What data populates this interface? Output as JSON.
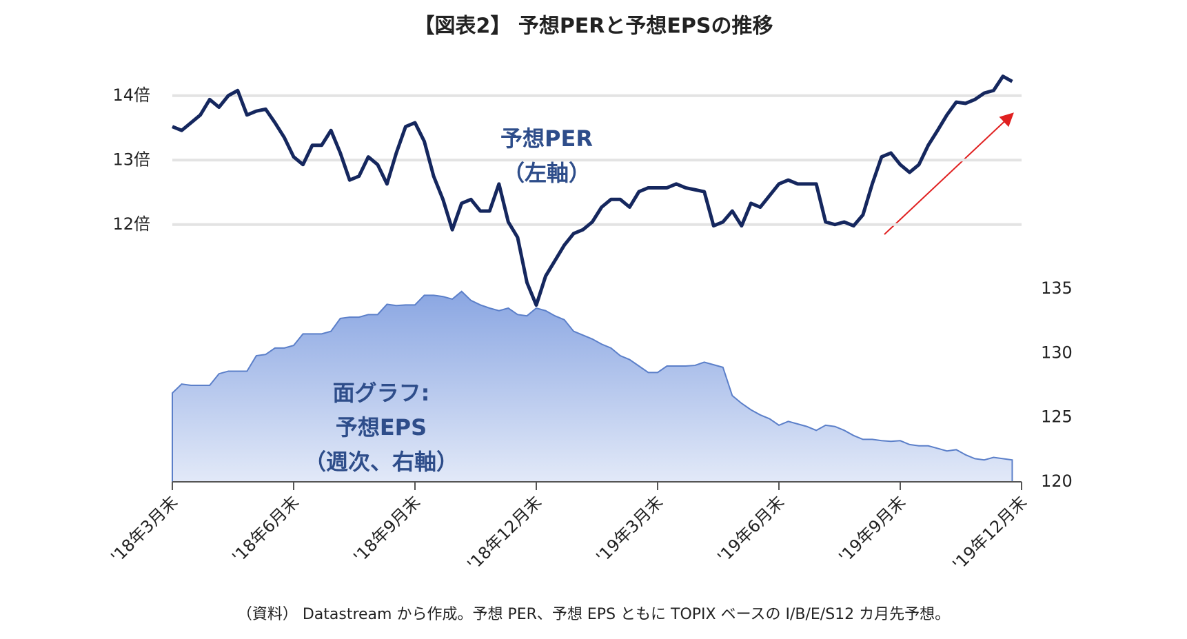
{
  "chart_data": {
    "type": "line-area",
    "title": "【図表2】 予想PERと予想EPSの推移",
    "note": "（資料） Datastream から作成。予想 PER、予想 EPS ともに TOPIX ベースの I/B/E/S12 カ月先予想。",
    "annotations": [
      "予想PER",
      "（左軸）",
      "面グラフ:",
      "予想EPS",
      "（週次、右軸）"
    ],
    "categories": [
      "'18年3月末",
      null,
      null,
      null,
      null,
      null,
      null,
      null,
      null,
      null,
      null,
      null,
      null,
      "'18年6月末",
      null,
      null,
      null,
      null,
      null,
      null,
      null,
      null,
      null,
      null,
      null,
      null,
      "'18年9月末",
      null,
      null,
      null,
      null,
      null,
      null,
      null,
      null,
      null,
      null,
      null,
      null,
      "'18年12月末",
      null,
      null,
      null,
      null,
      null,
      null,
      null,
      null,
      null,
      null,
      null,
      null,
      "'19年3月末",
      null,
      null,
      null,
      null,
      null,
      null,
      null,
      null,
      null,
      null,
      null,
      null,
      "'19年6月末",
      null,
      null,
      null,
      null,
      null,
      null,
      null,
      null,
      null,
      null,
      null,
      null,
      "'19年9月末",
      null,
      null,
      null,
      null,
      null,
      null,
      null,
      null,
      null,
      null,
      null,
      null,
      "'19年12月末"
    ],
    "series": [
      {
        "name": "予想PER",
        "color": "#15275e",
        "axis": "y",
        "values": [
          13.52,
          13.46,
          13.58,
          13.7,
          13.94,
          13.82,
          14.0,
          14.08,
          13.7,
          13.76,
          13.79,
          13.58,
          13.35,
          13.05,
          12.93,
          13.23,
          13.23,
          13.46,
          13.11,
          12.69,
          12.75,
          13.05,
          12.93,
          12.63,
          13.11,
          13.52,
          13.58,
          13.29,
          12.75,
          12.39,
          11.92,
          12.33,
          12.39,
          12.21,
          12.21,
          12.63,
          12.04,
          11.8,
          11.1,
          10.75,
          11.2,
          11.44,
          11.68,
          11.86,
          11.92,
          12.04,
          12.27,
          12.39,
          12.39,
          12.27,
          12.51,
          12.57,
          12.57,
          12.57,
          12.63,
          12.57,
          12.54,
          12.51,
          11.98,
          12.04,
          12.21,
          11.98,
          12.33,
          12.27,
          12.45,
          12.63,
          12.69,
          12.63,
          12.63,
          12.63,
          12.04,
          12.0,
          12.04,
          11.98,
          12.15,
          12.63,
          13.05,
          13.11,
          12.93,
          12.81,
          12.93,
          13.23,
          13.46,
          13.7,
          13.9,
          13.88,
          13.94,
          14.04,
          14.08,
          14.3,
          14.22,
          null
        ]
      },
      {
        "name": "予想EPS",
        "color": "#5b7fc9",
        "axis": "y2",
        "values": [
          126.9,
          127.6,
          127.5,
          127.5,
          127.5,
          128.4,
          128.6,
          128.6,
          128.6,
          129.8,
          129.9,
          130.4,
          130.4,
          130.6,
          131.5,
          131.5,
          131.5,
          131.7,
          132.7,
          132.8,
          132.8,
          133.0,
          133.0,
          133.8,
          133.7,
          133.75,
          133.75,
          134.5,
          134.5,
          134.4,
          134.2,
          134.8,
          134.1,
          133.75,
          133.5,
          133.3,
          133.5,
          133.0,
          132.9,
          133.5,
          133.3,
          132.9,
          132.6,
          131.7,
          131.4,
          131.1,
          130.7,
          130.4,
          129.8,
          129.5,
          129.0,
          128.5,
          128.5,
          129.0,
          129.0,
          129.0,
          129.05,
          129.3,
          129.1,
          128.9,
          126.7,
          126.1,
          125.6,
          125.2,
          124.9,
          124.4,
          124.7,
          124.5,
          124.3,
          124.0,
          124.4,
          124.3,
          124.0,
          123.6,
          123.3,
          123.3,
          123.2,
          123.15,
          123.2,
          122.9,
          122.8,
          122.8,
          122.6,
          122.4,
          122.5,
          122.1,
          121.8,
          121.7,
          121.9,
          121.8,
          121.7,
          null
        ]
      }
    ],
    "ylim": [
      10.5,
      14.5
    ],
    "yticks": [
      {
        "value": 12,
        "label": "12倍"
      },
      {
        "value": 13,
        "label": "13倍"
      },
      {
        "value": 14,
        "label": "14倍"
      }
    ],
    "y2lim": [
      120,
      135
    ],
    "y2ticks": [
      120,
      125,
      130,
      135
    ],
    "grid": true
  }
}
